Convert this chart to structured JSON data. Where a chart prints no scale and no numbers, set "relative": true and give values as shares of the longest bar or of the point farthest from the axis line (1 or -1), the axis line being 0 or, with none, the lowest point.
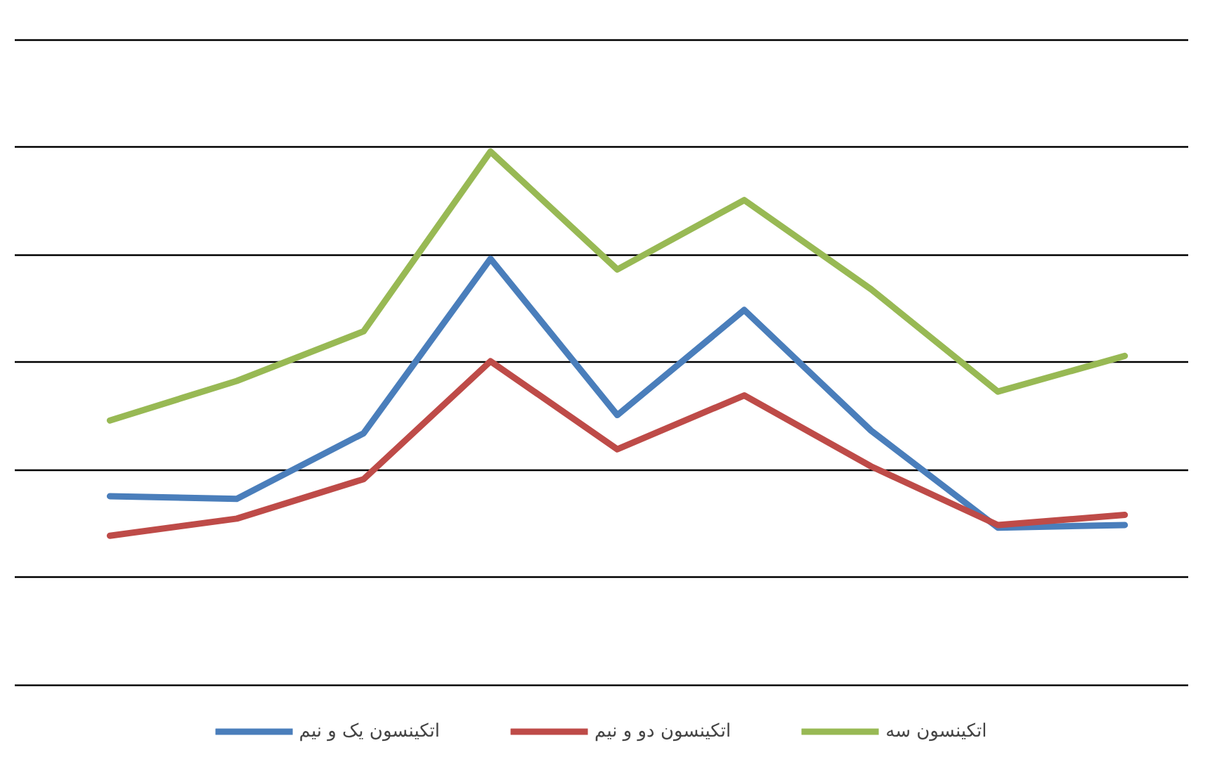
{
  "chart_data": {
    "type": "line",
    "relative": true,
    "categories": [
      null,
      null,
      null,
      null,
      null,
      null,
      null,
      null,
      null
    ],
    "series": [
      {
        "name": "اتکینسون یک و نیم",
        "color": "#4a7ebb",
        "values": [
          0.354,
          0.349,
          0.472,
          0.799,
          0.506,
          0.703,
          0.477,
          0.295,
          0.3
        ]
      },
      {
        "name": "اتکینسون دو و نیم",
        "color": "#be4b48",
        "values": [
          0.28,
          0.312,
          0.386,
          0.607,
          0.442,
          0.543,
          0.41,
          0.3,
          0.319
        ]
      },
      {
        "name": "اتکینسون سه",
        "color": "#98b954",
        "values": [
          0.496,
          0.57,
          0.663,
          1.0,
          0.779,
          0.909,
          0.742,
          0.55,
          0.617
        ]
      }
    ],
    "grid": "y",
    "legend": "bottom",
    "marker": "none",
    "line_style": "solid"
  }
}
